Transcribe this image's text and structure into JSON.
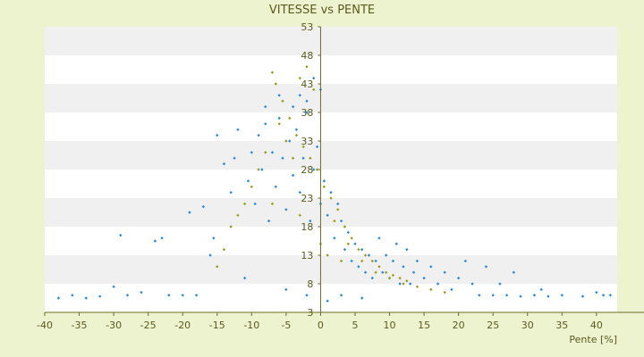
{
  "chart_data": {
    "type": "scatter",
    "title": "VITESSE vs PENTE",
    "xlabel": "Pente [%]",
    "ylabel": "",
    "xlim": [
      -40,
      43
    ],
    "ylim": [
      3,
      53
    ],
    "x_ticks": [
      -40,
      -35,
      -30,
      -25,
      -20,
      -15,
      -10,
      -5,
      0,
      5,
      10,
      15,
      20,
      25,
      30,
      35,
      40
    ],
    "y_ticks": [
      3,
      8,
      13,
      18,
      23,
      28,
      33,
      38,
      43,
      48,
      53
    ],
    "grid": true,
    "legend": "none",
    "colors": {
      "background": "#eef3cf",
      "plot_band_light": "#ffffff",
      "plot_band_dark": "#f0f0f0",
      "axis": "#6b6b2a",
      "series_blue": "#2a8ad8",
      "series_olive": "#9c9c1e"
    },
    "series": [
      {
        "color": "#2a8ad8",
        "points": [
          [
            -38,
            5.5
          ],
          [
            -36,
            6
          ],
          [
            -34,
            5.5
          ],
          [
            -32,
            5.8
          ],
          [
            -30,
            7.5
          ],
          [
            -29,
            16.5
          ],
          [
            -28,
            6
          ],
          [
            -26,
            6.5
          ],
          [
            -24,
            15.5
          ],
          [
            -23,
            16
          ],
          [
            -22,
            6
          ],
          [
            -20,
            6
          ],
          [
            -19,
            20.5
          ],
          [
            -18,
            6
          ],
          [
            -17,
            21.5
          ],
          [
            -16,
            13
          ],
          [
            -15.5,
            16
          ],
          [
            -15,
            34
          ],
          [
            -14,
            29
          ],
          [
            -13,
            24
          ],
          [
            -12.5,
            30
          ],
          [
            -12,
            35
          ],
          [
            -11,
            9
          ],
          [
            -10.5,
            26
          ],
          [
            -10,
            31
          ],
          [
            -9.5,
            22
          ],
          [
            -9,
            34
          ],
          [
            -8.5,
            28
          ],
          [
            -8,
            36
          ],
          [
            -7.5,
            19
          ],
          [
            -7,
            31
          ],
          [
            -6.5,
            25
          ],
          [
            -6,
            37
          ],
          [
            -5.5,
            30
          ],
          [
            -5,
            21
          ],
          [
            -4.5,
            33
          ],
          [
            -4,
            27
          ],
          [
            -3.5,
            35
          ],
          [
            -3,
            24
          ],
          [
            -2.5,
            30
          ],
          [
            -2,
            38
          ],
          [
            -1.5,
            19
          ],
          [
            -1,
            28
          ],
          [
            -0.5,
            32
          ],
          [
            0,
            22
          ],
          [
            0.5,
            26
          ],
          [
            1,
            20
          ],
          [
            1.5,
            24
          ],
          [
            2,
            16
          ],
          [
            2.5,
            22
          ],
          [
            3,
            19
          ],
          [
            3.5,
            14
          ],
          [
            4,
            17
          ],
          [
            4.5,
            12
          ],
          [
            5,
            15
          ],
          [
            5.5,
            11
          ],
          [
            6,
            14
          ],
          [
            6.5,
            10
          ],
          [
            7,
            13
          ],
          [
            7.5,
            9
          ],
          [
            8,
            12
          ],
          [
            8.5,
            16
          ],
          [
            9,
            10
          ],
          [
            9.5,
            13
          ],
          [
            10,
            9
          ],
          [
            10.5,
            12
          ],
          [
            11,
            15
          ],
          [
            11.5,
            8
          ],
          [
            12,
            11
          ],
          [
            12.5,
            14
          ],
          [
            13,
            8
          ],
          [
            13.5,
            10
          ],
          [
            14,
            12
          ],
          [
            15,
            9
          ],
          [
            16,
            11
          ],
          [
            17,
            8
          ],
          [
            18,
            10
          ],
          [
            19,
            7
          ],
          [
            20,
            9
          ],
          [
            21,
            12
          ],
          [
            22,
            8
          ],
          [
            23,
            6
          ],
          [
            24,
            11
          ],
          [
            25,
            6
          ],
          [
            26,
            8
          ],
          [
            27,
            6
          ],
          [
            28,
            10
          ],
          [
            29,
            5.8
          ],
          [
            31,
            6
          ],
          [
            32,
            7
          ],
          [
            33,
            5.8
          ],
          [
            35,
            6
          ],
          [
            38,
            5.8
          ],
          [
            40,
            6.5
          ],
          [
            41,
            6
          ],
          [
            42,
            6
          ],
          [
            0,
            42
          ],
          [
            -1,
            44
          ],
          [
            -2,
            40
          ],
          [
            -3,
            41
          ],
          [
            -4,
            39
          ],
          [
            -6,
            41
          ],
          [
            -8,
            39
          ],
          [
            -5,
            7
          ],
          [
            -2,
            6
          ],
          [
            1,
            5
          ],
          [
            3,
            6
          ],
          [
            6,
            5.5
          ]
        ]
      },
      {
        "color": "#9c9c1e",
        "points": [
          [
            -7,
            45
          ],
          [
            -6.5,
            43
          ],
          [
            -5.5,
            40
          ],
          [
            -4.5,
            37
          ],
          [
            -3.5,
            34
          ],
          [
            -2.5,
            32
          ],
          [
            -1.5,
            30
          ],
          [
            -0.5,
            28
          ],
          [
            0.5,
            25
          ],
          [
            1.5,
            23
          ],
          [
            2.5,
            21
          ],
          [
            3.5,
            18
          ],
          [
            4.5,
            16
          ],
          [
            5.5,
            14
          ],
          [
            6.5,
            13
          ],
          [
            7.5,
            12
          ],
          [
            8.5,
            11
          ],
          [
            9.5,
            10
          ],
          [
            10.5,
            9.5
          ],
          [
            11.5,
            9
          ],
          [
            12.5,
            8.5
          ],
          [
            -8,
            31
          ],
          [
            -9,
            28
          ],
          [
            -10,
            25
          ],
          [
            -11,
            22
          ],
          [
            -12,
            20
          ],
          [
            -13,
            18
          ],
          [
            -6,
            36
          ],
          [
            -3,
            44
          ],
          [
            -2,
            46
          ],
          [
            -1,
            42
          ],
          [
            -5,
            33
          ],
          [
            -4,
            30
          ],
          [
            2,
            19
          ],
          [
            4,
            15
          ],
          [
            6,
            12
          ],
          [
            8,
            10
          ],
          [
            10,
            9
          ],
          [
            12,
            8
          ],
          [
            14,
            7.5
          ],
          [
            16,
            7
          ],
          [
            18,
            6.5
          ],
          [
            -14,
            14
          ],
          [
            -15,
            11
          ],
          [
            -7,
            22
          ],
          [
            -3,
            20
          ],
          [
            0,
            15
          ],
          [
            1,
            13
          ],
          [
            3,
            12
          ]
        ]
      }
    ]
  }
}
